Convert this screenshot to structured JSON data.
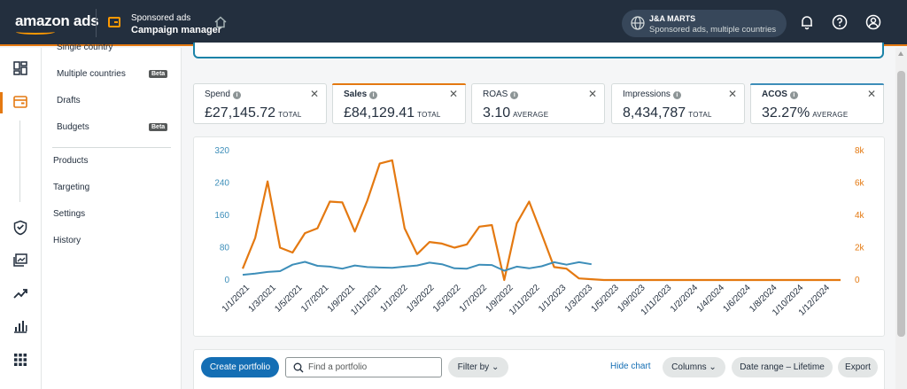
{
  "header": {
    "logo_text": "amazon ads",
    "app_line1": "Sponsored ads",
    "app_line2": "Campaign manager",
    "account_name": "J&A MARTS",
    "account_sub": "Sponsored ads, multiple countries",
    "icons": [
      "home-icon",
      "globe-icon",
      "bell-icon",
      "help-icon",
      "user-icon"
    ]
  },
  "rail": {
    "icons": [
      "dashboard-icon",
      "campaign-icon",
      "shield-icon",
      "media-icon",
      "trend-icon",
      "bar-chart-icon",
      "apps-icon"
    ]
  },
  "nav": {
    "items": [
      {
        "label": "Single country"
      },
      {
        "label": "Multiple countries",
        "badge": "Beta"
      },
      {
        "label": "Drafts"
      },
      {
        "label": "Budgets",
        "badge": "Beta"
      },
      {
        "label": "Products"
      },
      {
        "label": "Targeting"
      },
      {
        "label": "Settings"
      },
      {
        "label": "History"
      }
    ]
  },
  "metrics": [
    {
      "label": "Spend",
      "value": "£27,145.72",
      "unit": "TOTAL",
      "selected": false
    },
    {
      "label": "Sales",
      "value": "£84,129.41",
      "unit": "TOTAL",
      "selected": true,
      "accent": "#e47911"
    },
    {
      "label": "ROAS",
      "value": "3.10",
      "unit": "AVERAGE",
      "selected": false
    },
    {
      "label": "Impressions",
      "value": "8,434,787",
      "unit": "TOTAL",
      "selected": false
    },
    {
      "label": "ACOS",
      "value": "32.27%",
      "unit": "AVERAGE",
      "selected": true,
      "accent": "#3d8eb9"
    }
  ],
  "chart_data": {
    "type": "line",
    "x": [
      "1/1/2021",
      "2/1/2021",
      "3/1/2021",
      "4/1/2021",
      "5/1/2021",
      "6/1/2021",
      "7/1/2021",
      "8/1/2021",
      "9/1/2021",
      "10/1/2021",
      "11/1/2021",
      "12/1/2021",
      "1/1/2022",
      "2/1/2022",
      "3/1/2022",
      "4/1/2022",
      "5/1/2022",
      "6/1/2022",
      "7/1/2022",
      "8/1/2022",
      "9/1/2022",
      "10/1/2022",
      "11/1/2022",
      "12/1/2022",
      "1/1/2023",
      "2/1/2023",
      "3/1/2023",
      "4/1/2023",
      "5/1/2023",
      "6/1/2023",
      "7/1/2023",
      "8/1/2023",
      "9/1/2023",
      "10/1/2023",
      "11/1/2023",
      "12/1/2023",
      "1/1/2024",
      "2/1/2024",
      "3/1/2024",
      "4/1/2024",
      "5/1/2024",
      "6/1/2024",
      "7/1/2024",
      "8/1/2024",
      "9/1/2024",
      "10/1/2024",
      "11/1/2024",
      "12/1/2024",
      "1/1/2025"
    ],
    "x_tick_labels": [
      "1/1/2021",
      "1/3/2021",
      "1/5/2021",
      "1/7/2021",
      "1/9/2021",
      "1/11/2021",
      "1/1/2022",
      "1/3/2022",
      "1/5/2022",
      "1/7/2022",
      "1/9/2022",
      "1/11/2022",
      "1/1/2023",
      "1/3/2023",
      "1/5/2023",
      "1/9/2023",
      "1/11/2023",
      "1/2/2024",
      "1/4/2024",
      "1/6/2024",
      "1/8/2024",
      "1/10/2024",
      "1/12/2024"
    ],
    "y_left": {
      "ticks": [
        "0",
        "80",
        "160",
        "240",
        "320"
      ],
      "range": [
        0,
        320
      ],
      "color": "#3d8eb9"
    },
    "y_right": {
      "ticks": [
        "0",
        "2k",
        "4k",
        "6k",
        "8k"
      ],
      "range": [
        0,
        8000
      ],
      "color": "#e47911"
    },
    "series": [
      {
        "color": "#e47911",
        "axis": "right",
        "values": [
          700,
          2600,
          6100,
          2000,
          1700,
          2900,
          3200,
          4850,
          4800,
          3000,
          4900,
          7200,
          7400,
          3200,
          1600,
          2350,
          2250,
          2000,
          2200,
          3300,
          3400,
          0,
          3500,
          4850,
          2850,
          800,
          700,
          100,
          50,
          0,
          0,
          0,
          0,
          0,
          0,
          0,
          0,
          0,
          0,
          0,
          0,
          0,
          0,
          0,
          0,
          0,
          0,
          0,
          0
        ]
      },
      {
        "color": "#3d8eb9",
        "axis": "left",
        "values": [
          13,
          16,
          20,
          22,
          38,
          45,
          35,
          33,
          28,
          36,
          32,
          31,
          30,
          33,
          36,
          43,
          39,
          29,
          28,
          38,
          37,
          23,
          33,
          29,
          34,
          44,
          38,
          44,
          39,
          null,
          null,
          null,
          null,
          null,
          null,
          null,
          null,
          null,
          null,
          null,
          null,
          null,
          null,
          null,
          null,
          null,
          null,
          null,
          null
        ]
      }
    ],
    "grid": false,
    "legend": "none"
  },
  "toolbar": {
    "create_label": "Create portfolio",
    "search_placeholder": "Find a portfolio",
    "filter_label": "Filter by",
    "hide_chart_label": "Hide chart",
    "columns_label": "Columns",
    "date_range_label": "Date range – Lifetime",
    "export_label": "Export"
  }
}
